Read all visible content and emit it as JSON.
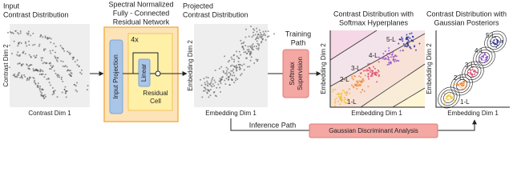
{
  "panels": [
    {
      "title": [
        "Input",
        "Contrast Distribution"
      ],
      "y_label": "Contrast Dim 2",
      "x_label": "Contrast Dim 1"
    },
    {
      "title": [
        "Spectral Normalized",
        "Fully - Connected",
        "Residual Network"
      ],
      "repeat": "4x",
      "input_block": "Input Projection",
      "linear_block": "Linear",
      "cell_label": [
        "Residual",
        "Cell"
      ]
    },
    {
      "title": [
        "Projected",
        "Contrast Distribution"
      ],
      "y_label": "Embedding Dim 2",
      "x_label": "Embedding Dim 1"
    },
    {
      "path_label": [
        "Training",
        "Path"
      ],
      "block": [
        "Softmax",
        "Supervision"
      ]
    },
    {
      "title": [
        "Contrast Distribution with",
        "Softmax Hyperplanes"
      ],
      "y_label": "Embedding Dim 2",
      "x_label": "Embedding Dim 1",
      "class_labels": [
        "5-L",
        "4-L",
        "3-L",
        "2-L",
        "1-L"
      ]
    },
    {
      "title": [
        "Contrast Distribution with",
        "Gaussian Posteriors"
      ],
      "y_label": "Embedding Dim 2",
      "x_label": "Embedding Dim 1",
      "class_labels": [
        "5-L",
        "4-L",
        "3-L",
        "2-L",
        "1-L"
      ]
    }
  ],
  "inference": {
    "path_label": "Inference Path",
    "block": "Gaussian Discriminant Analysis"
  }
}
